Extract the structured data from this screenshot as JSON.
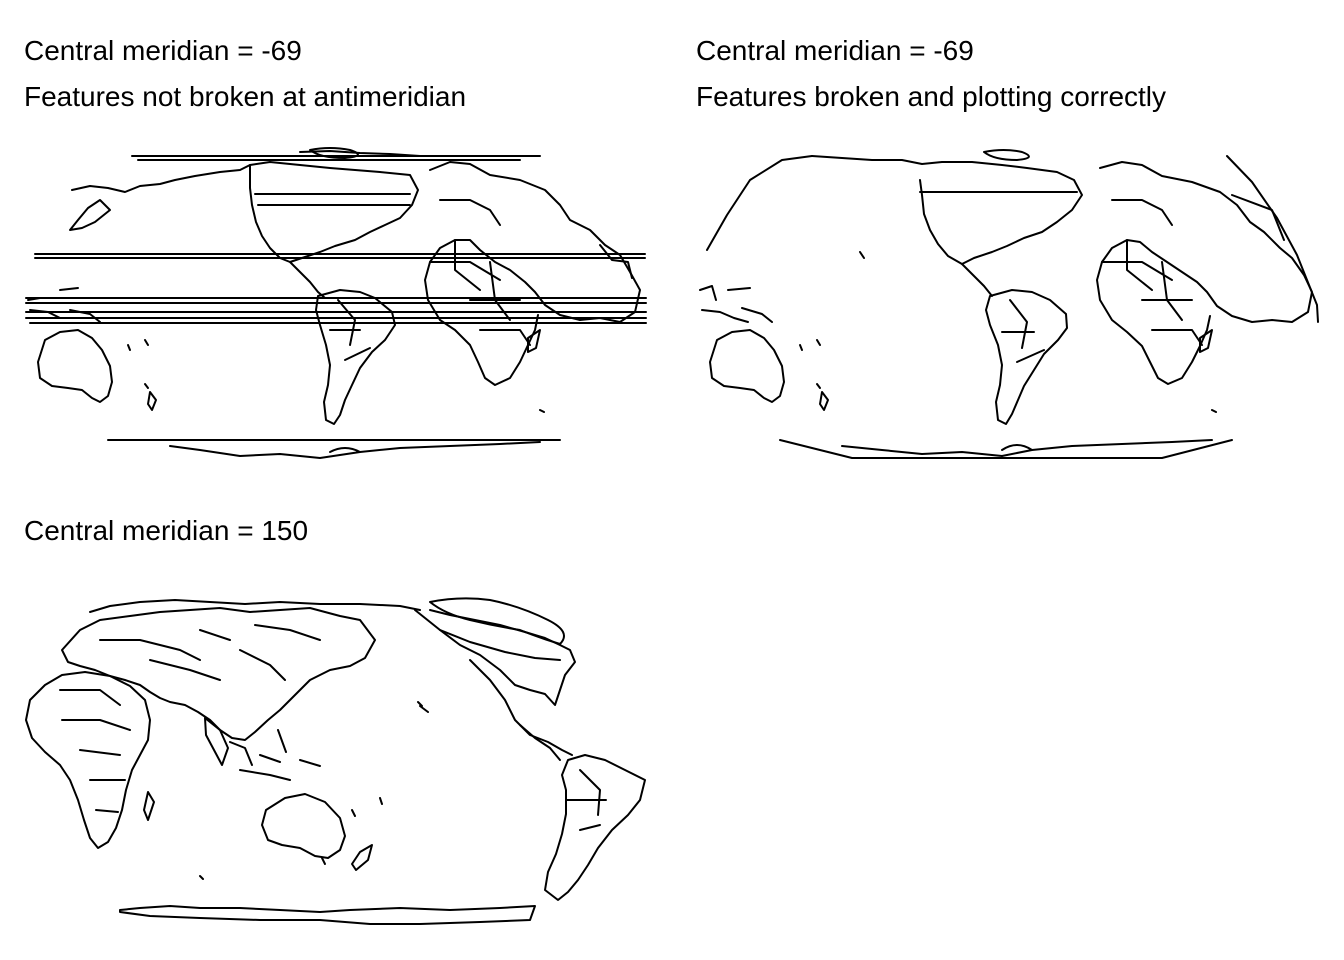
{
  "panels": [
    {
      "title_line1": "Central meridian = -69",
      "title_line2": "Features not broken at antimeridian"
    },
    {
      "title_line1": "Central meridian = -69",
      "title_line2": "Features broken and plotting correctly"
    },
    {
      "title_line1": "Central meridian = 150"
    }
  ],
  "colors": {
    "background": "#ffffff",
    "outline": "#000000"
  }
}
